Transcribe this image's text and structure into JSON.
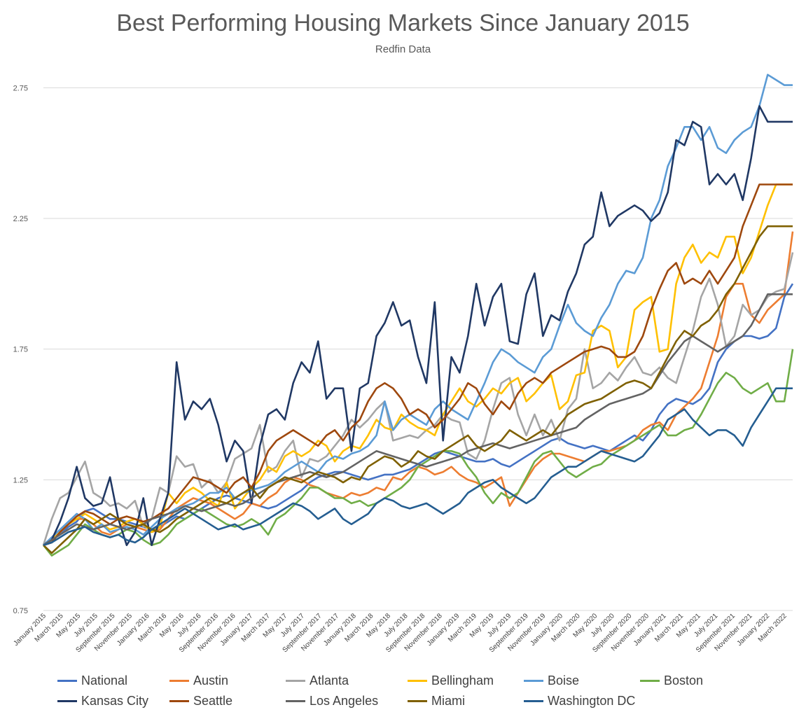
{
  "chart_data": {
    "type": "line",
    "title": "Best Performing Housing Markets Since January 2015",
    "subtitle": "Redfin Data",
    "xlabel": "",
    "ylabel": "",
    "ylim": [
      0.75,
      2.85
    ],
    "yticks": [
      "0.75",
      "1.25",
      "1.75",
      "2.25",
      "2.75"
    ],
    "ytick_values": [
      0.75,
      1.25,
      1.75,
      2.25,
      2.75
    ],
    "grid": true,
    "legend_position": "bottom",
    "x_tick_labels": [
      "January 2015",
      "March 2015",
      "May 2015",
      "July 2015",
      "September 2015",
      "November 2015",
      "January 2016",
      "March 2016",
      "May 2016",
      "July 2016",
      "September 2016",
      "November 2016",
      "January 2017",
      "March 2017",
      "May 2017",
      "July 2017",
      "September 2017",
      "November 2017",
      "January 2018",
      "March 2018",
      "May 2018",
      "July 2018",
      "September 2018",
      "November 2018",
      "January 2019",
      "March 2019",
      "May 2019",
      "July 2019",
      "September 2019",
      "November 2019",
      "January 2020",
      "March 2020",
      "May 2020",
      "July 2020",
      "September 2020",
      "November 2020",
      "January 2021",
      "March 2021",
      "May 2021",
      "July 2021",
      "September 2021",
      "November 2021",
      "January 2022",
      "March 2022"
    ],
    "n_points": 88,
    "series": [
      {
        "name": "National",
        "color": "#4472C4",
        "values": [
          1.0,
          1.02,
          1.04,
          1.07,
          1.09,
          1.13,
          1.14,
          1.12,
          1.1,
          1.1,
          1.09,
          1.08,
          1.07,
          1.06,
          1.07,
          1.09,
          1.11,
          1.1,
          1.12,
          1.14,
          1.16,
          1.18,
          1.19,
          1.18,
          1.17,
          1.16,
          1.15,
          1.14,
          1.15,
          1.17,
          1.19,
          1.21,
          1.24,
          1.26,
          1.27,
          1.28,
          1.28,
          1.27,
          1.26,
          1.25,
          1.26,
          1.27,
          1.27,
          1.28,
          1.29,
          1.31,
          1.33,
          1.35,
          1.36,
          1.35,
          1.34,
          1.33,
          1.32,
          1.32,
          1.33,
          1.31,
          1.3,
          1.32,
          1.34,
          1.36,
          1.38,
          1.4,
          1.41,
          1.39,
          1.38,
          1.37,
          1.38,
          1.37,
          1.36,
          1.38,
          1.4,
          1.42,
          1.4,
          1.44,
          1.5,
          1.54,
          1.56,
          1.55,
          1.54,
          1.56,
          1.6,
          1.7,
          1.75,
          1.78,
          1.8,
          1.8,
          1.79,
          1.8,
          1.83,
          1.95,
          2.0
        ]
      },
      {
        "name": "Austin",
        "color": "#ED7D31",
        "values": [
          1.0,
          1.01,
          1.05,
          1.08,
          1.1,
          1.1,
          1.08,
          1.05,
          1.04,
          1.06,
          1.08,
          1.07,
          1.06,
          1.05,
          1.06,
          1.1,
          1.14,
          1.16,
          1.18,
          1.17,
          1.16,
          1.14,
          1.12,
          1.1,
          1.12,
          1.16,
          1.15,
          1.18,
          1.2,
          1.24,
          1.26,
          1.25,
          1.23,
          1.22,
          1.2,
          1.19,
          1.18,
          1.2,
          1.19,
          1.2,
          1.22,
          1.21,
          1.26,
          1.25,
          1.28,
          1.3,
          1.29,
          1.27,
          1.28,
          1.3,
          1.27,
          1.25,
          1.24,
          1.22,
          1.24,
          1.26,
          1.15,
          1.2,
          1.25,
          1.3,
          1.33,
          1.35,
          1.35,
          1.34,
          1.33,
          1.32,
          1.34,
          1.36,
          1.36,
          1.37,
          1.38,
          1.4,
          1.44,
          1.46,
          1.47,
          1.44,
          1.5,
          1.53,
          1.56,
          1.6,
          1.7,
          1.8,
          1.95,
          2.0,
          2.0,
          1.88,
          1.85,
          1.9,
          1.93,
          1.96,
          2.2
        ]
      },
      {
        "name": "Atlanta",
        "color": "#A5A5A5",
        "values": [
          1.0,
          1.1,
          1.18,
          1.2,
          1.26,
          1.32,
          1.2,
          1.18,
          1.15,
          1.16,
          1.14,
          1.17,
          1.07,
          1.1,
          1.22,
          1.2,
          1.34,
          1.3,
          1.31,
          1.22,
          1.25,
          1.2,
          1.24,
          1.33,
          1.35,
          1.37,
          1.46,
          1.28,
          1.3,
          1.36,
          1.4,
          1.26,
          1.33,
          1.32,
          1.34,
          1.38,
          1.42,
          1.48,
          1.45,
          1.48,
          1.52,
          1.55,
          1.4,
          1.41,
          1.42,
          1.41,
          1.44,
          1.46,
          1.5,
          1.48,
          1.47,
          1.35,
          1.33,
          1.4,
          1.52,
          1.62,
          1.64,
          1.5,
          1.42,
          1.5,
          1.42,
          1.48,
          1.4,
          1.52,
          1.56,
          1.75,
          1.6,
          1.62,
          1.66,
          1.63,
          1.68,
          1.72,
          1.66,
          1.65,
          1.68,
          1.64,
          1.62,
          1.72,
          1.82,
          1.95,
          2.02,
          1.92,
          1.76,
          1.8,
          1.92,
          1.88,
          1.9,
          1.95,
          1.97,
          1.98,
          2.12
        ]
      },
      {
        "name": "Bellingham",
        "color": "#FFC000",
        "values": [
          1.0,
          1.02,
          1.05,
          1.08,
          1.1,
          1.12,
          1.1,
          1.08,
          1.06,
          1.07,
          1.09,
          1.1,
          1.08,
          1.05,
          1.07,
          1.2,
          1.16,
          1.2,
          1.22,
          1.2,
          1.17,
          1.15,
          1.24,
          1.14,
          1.18,
          1.22,
          1.25,
          1.3,
          1.28,
          1.34,
          1.36,
          1.34,
          1.36,
          1.4,
          1.38,
          1.32,
          1.36,
          1.38,
          1.37,
          1.42,
          1.48,
          1.45,
          1.44,
          1.5,
          1.47,
          1.45,
          1.44,
          1.42,
          1.5,
          1.55,
          1.6,
          1.55,
          1.53,
          1.56,
          1.6,
          1.58,
          1.62,
          1.64,
          1.55,
          1.58,
          1.62,
          1.65,
          1.52,
          1.55,
          1.65,
          1.66,
          1.82,
          1.84,
          1.82,
          1.68,
          1.72,
          1.9,
          1.93,
          1.95,
          1.74,
          1.75,
          2.0,
          2.1,
          2.15,
          2.08,
          2.12,
          2.1,
          2.18,
          2.18,
          2.04,
          2.1,
          2.2,
          2.3,
          2.38,
          2.38,
          2.38
        ]
      },
      {
        "name": "Boise",
        "color": "#5B9BD5",
        "values": [
          1.0,
          1.03,
          1.06,
          1.09,
          1.12,
          1.1,
          1.06,
          1.08,
          1.05,
          1.06,
          1.07,
          1.06,
          1.04,
          1.07,
          1.1,
          1.12,
          1.14,
          1.15,
          1.16,
          1.18,
          1.2,
          1.2,
          1.22,
          1.18,
          1.2,
          1.21,
          1.22,
          1.23,
          1.25,
          1.28,
          1.3,
          1.32,
          1.3,
          1.28,
          1.32,
          1.34,
          1.33,
          1.35,
          1.36,
          1.38,
          1.42,
          1.55,
          1.44,
          1.48,
          1.5,
          1.48,
          1.46,
          1.52,
          1.55,
          1.52,
          1.5,
          1.48,
          1.55,
          1.62,
          1.7,
          1.75,
          1.73,
          1.7,
          1.68,
          1.66,
          1.72,
          1.75,
          1.84,
          1.92,
          1.85,
          1.82,
          1.8,
          1.87,
          1.92,
          2.0,
          2.05,
          2.04,
          2.1,
          2.25,
          2.32,
          2.45,
          2.52,
          2.6,
          2.6,
          2.55,
          2.6,
          2.52,
          2.5,
          2.55,
          2.58,
          2.6,
          2.68,
          2.8,
          2.78,
          2.76,
          2.76
        ]
      },
      {
        "name": "Boston",
        "color": "#70AD47",
        "values": [
          1.0,
          0.96,
          0.98,
          1.0,
          1.04,
          1.08,
          1.06,
          1.04,
          1.03,
          1.04,
          1.06,
          1.05,
          1.02,
          1.0,
          1.01,
          1.04,
          1.08,
          1.1,
          1.12,
          1.14,
          1.12,
          1.1,
          1.08,
          1.07,
          1.08,
          1.1,
          1.08,
          1.04,
          1.1,
          1.12,
          1.15,
          1.18,
          1.22,
          1.22,
          1.2,
          1.18,
          1.18,
          1.16,
          1.17,
          1.15,
          1.16,
          1.18,
          1.2,
          1.22,
          1.25,
          1.3,
          1.32,
          1.34,
          1.36,
          1.36,
          1.35,
          1.3,
          1.26,
          1.2,
          1.16,
          1.2,
          1.18,
          1.2,
          1.26,
          1.32,
          1.35,
          1.36,
          1.32,
          1.28,
          1.26,
          1.28,
          1.3,
          1.31,
          1.34,
          1.36,
          1.38,
          1.4,
          1.42,
          1.44,
          1.46,
          1.42,
          1.42,
          1.44,
          1.45,
          1.5,
          1.56,
          1.62,
          1.66,
          1.64,
          1.6,
          1.58,
          1.6,
          1.62,
          1.55,
          1.55,
          1.75
        ]
      },
      {
        "name": "Kansas City",
        "color": "#203864",
        "values": [
          1.0,
          1.02,
          1.09,
          1.18,
          1.3,
          1.18,
          1.15,
          1.16,
          1.26,
          1.1,
          1.0,
          1.05,
          1.18,
          1.0,
          1.1,
          1.2,
          1.7,
          1.48,
          1.55,
          1.52,
          1.56,
          1.46,
          1.32,
          1.4,
          1.36,
          1.16,
          1.38,
          1.5,
          1.52,
          1.48,
          1.62,
          1.7,
          1.66,
          1.78,
          1.56,
          1.6,
          1.6,
          1.36,
          1.6,
          1.62,
          1.8,
          1.85,
          1.93,
          1.84,
          1.86,
          1.72,
          1.62,
          1.93,
          1.4,
          1.72,
          1.66,
          1.8,
          2.0,
          1.84,
          1.95,
          2.0,
          1.78,
          1.77,
          1.96,
          2.04,
          1.8,
          1.88,
          1.86,
          1.97,
          2.04,
          2.15,
          2.18,
          2.35,
          2.22,
          2.26,
          2.28,
          2.3,
          2.28,
          2.24,
          2.27,
          2.35,
          2.55,
          2.53,
          2.62,
          2.6,
          2.38,
          2.42,
          2.38,
          2.42,
          2.32,
          2.48,
          2.68,
          2.62,
          2.62,
          2.62,
          2.62
        ]
      },
      {
        "name": "Seattle",
        "color": "#9E480E",
        "values": [
          1.0,
          1.01,
          1.05,
          1.08,
          1.11,
          1.13,
          1.12,
          1.1,
          1.08,
          1.1,
          1.11,
          1.1,
          1.09,
          1.1,
          1.12,
          1.14,
          1.18,
          1.22,
          1.26,
          1.25,
          1.24,
          1.22,
          1.2,
          1.24,
          1.26,
          1.22,
          1.28,
          1.36,
          1.4,
          1.42,
          1.44,
          1.42,
          1.4,
          1.38,
          1.42,
          1.44,
          1.4,
          1.45,
          1.48,
          1.55,
          1.6,
          1.62,
          1.6,
          1.56,
          1.5,
          1.52,
          1.5,
          1.45,
          1.48,
          1.52,
          1.56,
          1.62,
          1.6,
          1.54,
          1.5,
          1.55,
          1.52,
          1.58,
          1.62,
          1.64,
          1.62,
          1.66,
          1.68,
          1.7,
          1.72,
          1.74,
          1.75,
          1.76,
          1.75,
          1.72,
          1.72,
          1.74,
          1.8,
          1.9,
          1.98,
          2.05,
          2.08,
          2.0,
          2.02,
          2.0,
          2.05,
          2.0,
          2.05,
          2.1,
          2.22,
          2.3,
          2.38,
          2.38,
          2.38,
          2.38,
          2.38
        ]
      },
      {
        "name": "Los Angeles",
        "color": "#636363",
        "values": [
          1.0,
          1.02,
          1.04,
          1.06,
          1.08,
          1.07,
          1.06,
          1.07,
          1.08,
          1.07,
          1.06,
          1.07,
          1.08,
          1.1,
          1.11,
          1.12,
          1.13,
          1.15,
          1.14,
          1.13,
          1.14,
          1.15,
          1.16,
          1.15,
          1.16,
          1.18,
          1.2,
          1.22,
          1.24,
          1.25,
          1.26,
          1.27,
          1.28,
          1.27,
          1.26,
          1.27,
          1.28,
          1.3,
          1.32,
          1.34,
          1.36,
          1.35,
          1.34,
          1.33,
          1.32,
          1.31,
          1.3,
          1.31,
          1.32,
          1.33,
          1.34,
          1.36,
          1.37,
          1.38,
          1.39,
          1.38,
          1.37,
          1.38,
          1.39,
          1.4,
          1.41,
          1.42,
          1.43,
          1.44,
          1.45,
          1.48,
          1.5,
          1.52,
          1.54,
          1.55,
          1.56,
          1.57,
          1.58,
          1.6,
          1.65,
          1.7,
          1.74,
          1.78,
          1.8,
          1.78,
          1.76,
          1.74,
          1.76,
          1.78,
          1.8,
          1.84,
          1.9,
          1.96,
          1.96,
          1.96,
          1.96
        ]
      },
      {
        "name": "Miami",
        "color": "#7F6000",
        "values": [
          1.0,
          0.97,
          1.0,
          1.03,
          1.06,
          1.1,
          1.08,
          1.1,
          1.12,
          1.1,
          1.08,
          1.07,
          1.08,
          1.06,
          1.05,
          1.07,
          1.1,
          1.12,
          1.14,
          1.16,
          1.18,
          1.17,
          1.16,
          1.18,
          1.2,
          1.22,
          1.18,
          1.22,
          1.24,
          1.26,
          1.25,
          1.24,
          1.26,
          1.28,
          1.27,
          1.26,
          1.24,
          1.26,
          1.25,
          1.3,
          1.32,
          1.34,
          1.33,
          1.3,
          1.32,
          1.36,
          1.34,
          1.33,
          1.36,
          1.38,
          1.4,
          1.42,
          1.38,
          1.36,
          1.38,
          1.4,
          1.44,
          1.42,
          1.4,
          1.42,
          1.44,
          1.42,
          1.46,
          1.5,
          1.52,
          1.54,
          1.55,
          1.56,
          1.58,
          1.6,
          1.62,
          1.63,
          1.62,
          1.6,
          1.66,
          1.72,
          1.78,
          1.82,
          1.8,
          1.84,
          1.86,
          1.9,
          1.96,
          2.0,
          2.06,
          2.12,
          2.18,
          2.22,
          2.22,
          2.22,
          2.22
        ]
      },
      {
        "name": "Washington DC",
        "color": "#255E91",
        "values": [
          1.0,
          1.01,
          1.03,
          1.05,
          1.06,
          1.07,
          1.05,
          1.04,
          1.03,
          1.04,
          1.02,
          1.01,
          1.03,
          1.06,
          1.08,
          1.1,
          1.12,
          1.14,
          1.12,
          1.1,
          1.08,
          1.06,
          1.07,
          1.08,
          1.06,
          1.07,
          1.08,
          1.1,
          1.12,
          1.14,
          1.16,
          1.15,
          1.13,
          1.1,
          1.12,
          1.14,
          1.1,
          1.08,
          1.1,
          1.12,
          1.16,
          1.18,
          1.17,
          1.15,
          1.14,
          1.15,
          1.16,
          1.14,
          1.12,
          1.14,
          1.16,
          1.2,
          1.22,
          1.24,
          1.25,
          1.22,
          1.2,
          1.18,
          1.16,
          1.18,
          1.22,
          1.26,
          1.28,
          1.3,
          1.3,
          1.32,
          1.34,
          1.36,
          1.35,
          1.34,
          1.33,
          1.32,
          1.34,
          1.38,
          1.42,
          1.48,
          1.5,
          1.52,
          1.48,
          1.45,
          1.42,
          1.44,
          1.44,
          1.42,
          1.38,
          1.45,
          1.5,
          1.55,
          1.6,
          1.6,
          1.6
        ]
      }
    ]
  }
}
